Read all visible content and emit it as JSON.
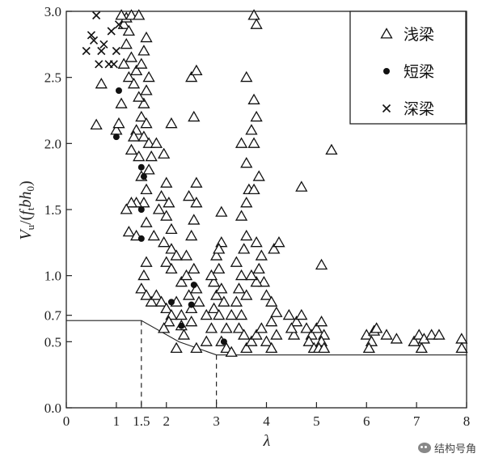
{
  "chart_data": {
    "type": "scatter",
    "xlabel": "λ",
    "ylabel_parts": {
      "v": "V",
      "u": "u",
      "mid": "/(",
      "f": "f",
      "t": "t",
      "bh": "bh",
      "zero": "0",
      "close": ")"
    },
    "xlim": [
      0,
      8
    ],
    "ylim": [
      0,
      3.0
    ],
    "x_ticks": [
      "0",
      "1",
      "1.5",
      "2",
      "3",
      "4",
      "5",
      "6",
      "7",
      "8"
    ],
    "x_tick_values": [
      0,
      1,
      1.5,
      2,
      3,
      4,
      5,
      6,
      7,
      8
    ],
    "y_ticks": [
      "0.0",
      "0.5",
      "0.7",
      "1.0",
      "1.5",
      "2.0",
      "2.5",
      "3.0"
    ],
    "y_tick_values": [
      0.0,
      0.5,
      0.7,
      1.0,
      1.5,
      2.0,
      2.5,
      3.0
    ],
    "legend_position": "top-right",
    "series": [
      {
        "name": "浅梁",
        "marker": "triangle",
        "points": [
          [
            0.6,
            2.14
          ],
          [
            0.7,
            2.45
          ],
          [
            1.0,
            2.1
          ],
          [
            1.05,
            2.15
          ],
          [
            1.1,
            2.3
          ],
          [
            1.15,
            2.9
          ],
          [
            1.2,
            2.95
          ],
          [
            1.1,
            3.0
          ],
          [
            1.3,
            3.0
          ],
          [
            1.45,
            3.0
          ],
          [
            1.3,
            2.65
          ],
          [
            1.25,
            2.5
          ],
          [
            1.15,
            2.6
          ],
          [
            1.2,
            2.75
          ],
          [
            1.25,
            2.85
          ],
          [
            1.35,
            2.45
          ],
          [
            1.4,
            2.55
          ],
          [
            1.5,
            2.6
          ],
          [
            1.55,
            2.7
          ],
          [
            1.6,
            2.8
          ],
          [
            1.65,
            2.5
          ],
          [
            1.6,
            2.4
          ],
          [
            1.55,
            2.3
          ],
          [
            1.5,
            2.2
          ],
          [
            1.45,
            2.35
          ],
          [
            1.4,
            2.1
          ],
          [
            1.35,
            2.05
          ],
          [
            1.3,
            1.95
          ],
          [
            1.45,
            1.9
          ],
          [
            1.55,
            2.05
          ],
          [
            1.6,
            2.15
          ],
          [
            1.65,
            2.0
          ],
          [
            1.7,
            1.9
          ],
          [
            1.8,
            2.0
          ],
          [
            1.95,
            1.92
          ],
          [
            2.1,
            2.15
          ],
          [
            1.5,
            1.75
          ],
          [
            1.6,
            1.65
          ],
          [
            1.55,
            1.55
          ],
          [
            1.65,
            1.8
          ],
          [
            1.4,
            1.55
          ],
          [
            1.3,
            1.55
          ],
          [
            1.2,
            1.5
          ],
          [
            1.25,
            1.33
          ],
          [
            1.4,
            1.3
          ],
          [
            1.6,
            1.4
          ],
          [
            1.75,
            1.3
          ],
          [
            1.85,
            1.5
          ],
          [
            1.9,
            1.6
          ],
          [
            2.0,
            1.7
          ],
          [
            2.05,
            1.55
          ],
          [
            2.0,
            1.45
          ],
          [
            2.1,
            1.35
          ],
          [
            1.95,
            1.25
          ],
          [
            2.1,
            1.2
          ],
          [
            2.0,
            1.1
          ],
          [
            2.2,
            1.15
          ],
          [
            2.1,
            1.05
          ],
          [
            1.6,
            1.1
          ],
          [
            1.55,
            1.0
          ],
          [
            1.5,
            0.9
          ],
          [
            1.6,
            0.85
          ],
          [
            1.7,
            0.8
          ],
          [
            1.8,
            0.85
          ],
          [
            1.9,
            0.8
          ],
          [
            2.0,
            0.75
          ],
          [
            2.1,
            0.7
          ],
          [
            2.2,
            0.8
          ],
          [
            2.05,
            0.65
          ],
          [
            1.95,
            0.6
          ],
          [
            2.3,
            0.62
          ],
          [
            2.35,
            0.55
          ],
          [
            2.5,
            0.65
          ],
          [
            2.5,
            0.75
          ],
          [
            2.45,
            0.85
          ],
          [
            2.6,
            0.9
          ],
          [
            2.65,
            0.8
          ],
          [
            2.3,
            0.95
          ],
          [
            2.4,
            1.0
          ],
          [
            2.55,
            1.05
          ],
          [
            2.4,
            1.15
          ],
          [
            2.5,
            1.3
          ],
          [
            2.55,
            1.42
          ],
          [
            2.6,
            1.55
          ],
          [
            2.45,
            1.6
          ],
          [
            2.6,
            1.7
          ],
          [
            2.5,
            2.5
          ],
          [
            2.6,
            2.55
          ],
          [
            2.55,
            2.2
          ],
          [
            2.3,
            0.7
          ],
          [
            2.2,
            0.45
          ],
          [
            2.6,
            0.45
          ],
          [
            2.8,
            0.5
          ],
          [
            2.9,
            0.6
          ],
          [
            2.8,
            0.7
          ],
          [
            2.95,
            0.75
          ],
          [
            3.0,
            0.85
          ],
          [
            2.95,
            0.95
          ],
          [
            3.05,
            1.05
          ],
          [
            3.0,
            1.15
          ],
          [
            3.1,
            1.25
          ],
          [
            3.05,
            1.2
          ],
          [
            2.9,
            1.0
          ],
          [
            3.1,
            0.9
          ],
          [
            3.15,
            0.8
          ],
          [
            3.05,
            0.7
          ],
          [
            3.2,
            0.6
          ],
          [
            3.1,
            0.5
          ],
          [
            3.2,
            0.45
          ],
          [
            3.3,
            0.42
          ],
          [
            3.1,
            1.48
          ],
          [
            3.3,
            0.7
          ],
          [
            3.4,
            0.8
          ],
          [
            3.45,
            0.9
          ],
          [
            3.5,
            1.0
          ],
          [
            3.4,
            1.1
          ],
          [
            3.55,
            1.2
          ],
          [
            3.6,
            1.3
          ],
          [
            3.5,
            1.45
          ],
          [
            3.6,
            1.55
          ],
          [
            3.65,
            1.65
          ],
          [
            3.5,
            2.0
          ],
          [
            3.6,
            1.85
          ],
          [
            3.6,
            2.5
          ],
          [
            3.7,
            2.1
          ],
          [
            3.75,
            2.0
          ],
          [
            3.8,
            2.2
          ],
          [
            3.75,
            2.33
          ],
          [
            3.85,
            1.75
          ],
          [
            3.75,
            1.65
          ],
          [
            3.8,
            1.25
          ],
          [
            3.9,
            1.15
          ],
          [
            3.85,
            1.05
          ],
          [
            3.95,
            0.95
          ],
          [
            4.0,
            0.85
          ],
          [
            4.1,
            0.8
          ],
          [
            3.8,
            0.95
          ],
          [
            3.7,
            1.0
          ],
          [
            3.6,
            0.85
          ],
          [
            3.5,
            0.7
          ],
          [
            3.45,
            0.6
          ],
          [
            3.55,
            0.55
          ],
          [
            3.6,
            0.45
          ],
          [
            3.7,
            0.5
          ],
          [
            3.8,
            0.55
          ],
          [
            3.9,
            0.6
          ],
          [
            4.0,
            0.5
          ],
          [
            4.1,
            0.45
          ],
          [
            4.2,
            0.55
          ],
          [
            4.15,
            1.2
          ],
          [
            4.25,
            1.25
          ],
          [
            4.1,
            0.65
          ],
          [
            4.2,
            0.72
          ],
          [
            3.75,
            3.0
          ],
          [
            3.8,
            2.9
          ],
          [
            4.7,
            1.67
          ],
          [
            4.6,
            0.65
          ],
          [
            4.7,
            0.7
          ],
          [
            4.8,
            0.6
          ],
          [
            4.9,
            0.55
          ],
          [
            5.0,
            0.6
          ],
          [
            5.1,
            0.65
          ],
          [
            5.15,
            0.55
          ],
          [
            5.1,
            0.5
          ],
          [
            4.85,
            0.5
          ],
          [
            4.95,
            0.45
          ],
          [
            5.05,
            0.45
          ],
          [
            5.15,
            0.45
          ],
          [
            4.55,
            0.55
          ],
          [
            4.5,
            0.6
          ],
          [
            4.45,
            0.7
          ],
          [
            5.1,
            1.08
          ],
          [
            5.3,
            1.95
          ],
          [
            6.0,
            0.55
          ],
          [
            6.1,
            0.5
          ],
          [
            6.15,
            0.58
          ],
          [
            6.2,
            0.6
          ],
          [
            6.05,
            0.45
          ],
          [
            6.4,
            0.55
          ],
          [
            6.6,
            0.52
          ],
          [
            6.95,
            0.5
          ],
          [
            7.05,
            0.55
          ],
          [
            7.1,
            0.45
          ],
          [
            7.15,
            0.52
          ],
          [
            7.3,
            0.55
          ],
          [
            7.45,
            0.55
          ],
          [
            7.9,
            0.52
          ],
          [
            7.95,
            0.45
          ]
        ]
      },
      {
        "name": "短梁",
        "marker": "dot",
        "points": [
          [
            1.0,
            2.05
          ],
          [
            1.05,
            2.4
          ],
          [
            1.5,
            1.82
          ],
          [
            1.55,
            1.75
          ],
          [
            1.5,
            1.5
          ],
          [
            1.5,
            1.28
          ],
          [
            2.1,
            0.8
          ],
          [
            2.3,
            0.62
          ],
          [
            2.5,
            0.78
          ],
          [
            2.55,
            0.93
          ],
          [
            3.15,
            0.5
          ]
        ]
      },
      {
        "name": "深梁",
        "marker": "cross",
        "points": [
          [
            0.6,
            3.0
          ],
          [
            0.5,
            2.82
          ],
          [
            0.55,
            2.78
          ],
          [
            0.7,
            2.7
          ],
          [
            0.65,
            2.6
          ],
          [
            0.9,
            2.85
          ],
          [
            1.0,
            2.7
          ],
          [
            0.95,
            2.6
          ],
          [
            0.4,
            2.7
          ],
          [
            0.75,
            2.75
          ],
          [
            0.85,
            2.6
          ],
          [
            1.05,
            2.9
          ]
        ]
      }
    ],
    "limit_line": [
      [
        0,
        0.66
      ],
      [
        1.5,
        0.66
      ],
      [
        2.25,
        0.5
      ],
      [
        3.0,
        0.4
      ],
      [
        8.0,
        0.4
      ]
    ],
    "dashed_verticals": [
      1.5,
      3.0
    ]
  },
  "watermark": {
    "text": "结构号角"
  }
}
